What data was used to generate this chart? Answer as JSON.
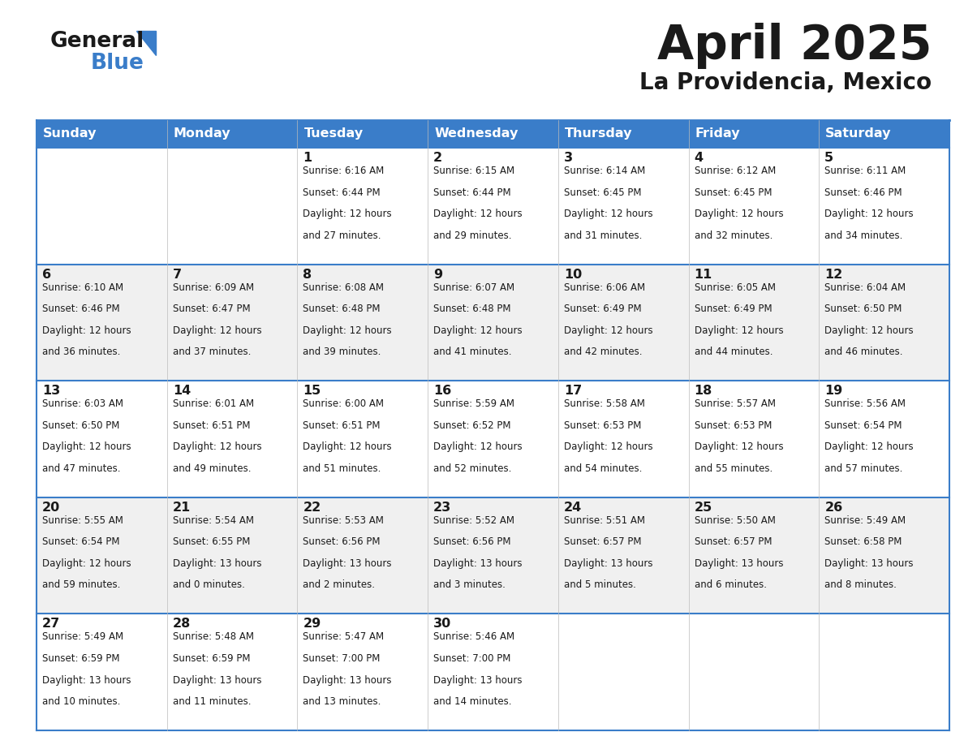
{
  "title": "April 2025",
  "subtitle": "La Providencia, Mexico",
  "header_color": "#3A7DC9",
  "header_text_color": "#FFFFFF",
  "bg_color": "#FFFFFF",
  "row_alt_color": "#F0F0F0",
  "border_color": "#3A7DC9",
  "days_of_week": [
    "Sunday",
    "Monday",
    "Tuesday",
    "Wednesday",
    "Thursday",
    "Friday",
    "Saturday"
  ],
  "weeks": [
    [
      {
        "day": "",
        "sunrise": "",
        "sunset": "",
        "daylight": ""
      },
      {
        "day": "",
        "sunrise": "",
        "sunset": "",
        "daylight": ""
      },
      {
        "day": "1",
        "sunrise": "6:16 AM",
        "sunset": "6:44 PM",
        "daylight": "12 hours and 27 minutes."
      },
      {
        "day": "2",
        "sunrise": "6:15 AM",
        "sunset": "6:44 PM",
        "daylight": "12 hours and 29 minutes."
      },
      {
        "day": "3",
        "sunrise": "6:14 AM",
        "sunset": "6:45 PM",
        "daylight": "12 hours and 31 minutes."
      },
      {
        "day": "4",
        "sunrise": "6:12 AM",
        "sunset": "6:45 PM",
        "daylight": "12 hours and 32 minutes."
      },
      {
        "day": "5",
        "sunrise": "6:11 AM",
        "sunset": "6:46 PM",
        "daylight": "12 hours and 34 minutes."
      }
    ],
    [
      {
        "day": "6",
        "sunrise": "6:10 AM",
        "sunset": "6:46 PM",
        "daylight": "12 hours and 36 minutes."
      },
      {
        "day": "7",
        "sunrise": "6:09 AM",
        "sunset": "6:47 PM",
        "daylight": "12 hours and 37 minutes."
      },
      {
        "day": "8",
        "sunrise": "6:08 AM",
        "sunset": "6:48 PM",
        "daylight": "12 hours and 39 minutes."
      },
      {
        "day": "9",
        "sunrise": "6:07 AM",
        "sunset": "6:48 PM",
        "daylight": "12 hours and 41 minutes."
      },
      {
        "day": "10",
        "sunrise": "6:06 AM",
        "sunset": "6:49 PM",
        "daylight": "12 hours and 42 minutes."
      },
      {
        "day": "11",
        "sunrise": "6:05 AM",
        "sunset": "6:49 PM",
        "daylight": "12 hours and 44 minutes."
      },
      {
        "day": "12",
        "sunrise": "6:04 AM",
        "sunset": "6:50 PM",
        "daylight": "12 hours and 46 minutes."
      }
    ],
    [
      {
        "day": "13",
        "sunrise": "6:03 AM",
        "sunset": "6:50 PM",
        "daylight": "12 hours and 47 minutes."
      },
      {
        "day": "14",
        "sunrise": "6:01 AM",
        "sunset": "6:51 PM",
        "daylight": "12 hours and 49 minutes."
      },
      {
        "day": "15",
        "sunrise": "6:00 AM",
        "sunset": "6:51 PM",
        "daylight": "12 hours and 51 minutes."
      },
      {
        "day": "16",
        "sunrise": "5:59 AM",
        "sunset": "6:52 PM",
        "daylight": "12 hours and 52 minutes."
      },
      {
        "day": "17",
        "sunrise": "5:58 AM",
        "sunset": "6:53 PM",
        "daylight": "12 hours and 54 minutes."
      },
      {
        "day": "18",
        "sunrise": "5:57 AM",
        "sunset": "6:53 PM",
        "daylight": "12 hours and 55 minutes."
      },
      {
        "day": "19",
        "sunrise": "5:56 AM",
        "sunset": "6:54 PM",
        "daylight": "12 hours and 57 minutes."
      }
    ],
    [
      {
        "day": "20",
        "sunrise": "5:55 AM",
        "sunset": "6:54 PM",
        "daylight": "12 hours and 59 minutes."
      },
      {
        "day": "21",
        "sunrise": "5:54 AM",
        "sunset": "6:55 PM",
        "daylight": "13 hours and 0 minutes."
      },
      {
        "day": "22",
        "sunrise": "5:53 AM",
        "sunset": "6:56 PM",
        "daylight": "13 hours and 2 minutes."
      },
      {
        "day": "23",
        "sunrise": "5:52 AM",
        "sunset": "6:56 PM",
        "daylight": "13 hours and 3 minutes."
      },
      {
        "day": "24",
        "sunrise": "5:51 AM",
        "sunset": "6:57 PM",
        "daylight": "13 hours and 5 minutes."
      },
      {
        "day": "25",
        "sunrise": "5:50 AM",
        "sunset": "6:57 PM",
        "daylight": "13 hours and 6 minutes."
      },
      {
        "day": "26",
        "sunrise": "5:49 AM",
        "sunset": "6:58 PM",
        "daylight": "13 hours and 8 minutes."
      }
    ],
    [
      {
        "day": "27",
        "sunrise": "5:49 AM",
        "sunset": "6:59 PM",
        "daylight": "13 hours and 10 minutes."
      },
      {
        "day": "28",
        "sunrise": "5:48 AM",
        "sunset": "6:59 PM",
        "daylight": "13 hours and 11 minutes."
      },
      {
        "day": "29",
        "sunrise": "5:47 AM",
        "sunset": "7:00 PM",
        "daylight": "13 hours and 13 minutes."
      },
      {
        "day": "30",
        "sunrise": "5:46 AM",
        "sunset": "7:00 PM",
        "daylight": "13 hours and 14 minutes."
      },
      {
        "day": "",
        "sunrise": "",
        "sunset": "",
        "daylight": ""
      },
      {
        "day": "",
        "sunrise": "",
        "sunset": "",
        "daylight": ""
      },
      {
        "day": "",
        "sunrise": "",
        "sunset": "",
        "daylight": ""
      }
    ]
  ]
}
